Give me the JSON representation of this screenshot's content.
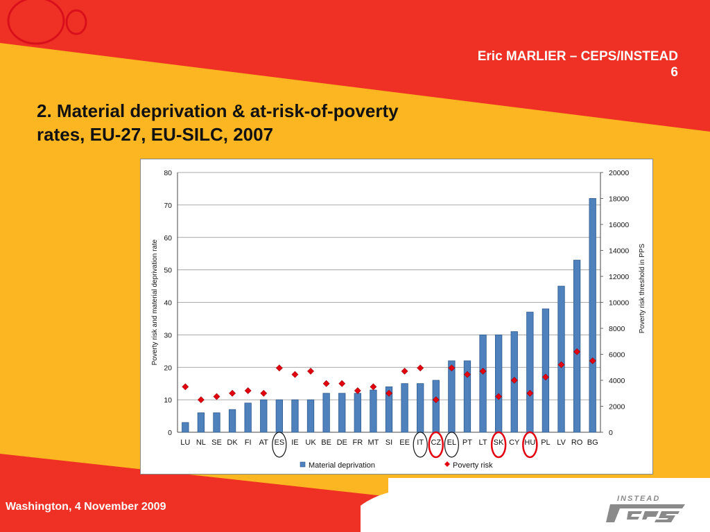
{
  "slide": {
    "author": "Eric MARLIER – CEPS/INSTEAD",
    "page_number": "6",
    "title_line1": "2. Material deprivation & at-risk-of-poverty",
    "title_line2": "rates, EU-27, EU-SILC, 2007",
    "footer": "Washington, 4 November 2009",
    "logo_text": "INSTEAD",
    "colors": {
      "background": "#fbb622",
      "accent_red": "#ee3124",
      "bar_fill": "#4f81bd",
      "marker": "#e3000f"
    }
  },
  "chart_data": {
    "type": "bar",
    "categories": [
      "LU",
      "NL",
      "SE",
      "DK",
      "FI",
      "AT",
      "ES",
      "IE",
      "UK",
      "BE",
      "DE",
      "FR",
      "MT",
      "SI",
      "EE",
      "IT",
      "CZ",
      "EL",
      "PT",
      "LT",
      "SK",
      "CY",
      "HU",
      "PL",
      "LV",
      "RO",
      "BG"
    ],
    "series": [
      {
        "name": "Material deprivation",
        "type": "bar",
        "axis": "left",
        "values": [
          3,
          6,
          6,
          7,
          9,
          10,
          10,
          10,
          10,
          12,
          12,
          12,
          13,
          14,
          15,
          15,
          16,
          22,
          22,
          30,
          30,
          31,
          37,
          38,
          45,
          53,
          72
        ]
      },
      {
        "name": "Poverty risk",
        "type": "marker",
        "axis": "right",
        "values": [
          3500,
          2500,
          2750,
          3000,
          3200,
          3000,
          4950,
          4450,
          4700,
          3750,
          3750,
          3200,
          3500,
          3000,
          4700,
          4950,
          2500,
          4950,
          4450,
          4700,
          2750,
          4000,
          3000,
          4250,
          5200,
          6200,
          5500
        ]
      }
    ],
    "ylabel": "Poverty risk and material deprivation rate",
    "y2label": "Poverty risk threshold in PPS",
    "ylim": [
      0,
      80
    ],
    "y2lim": [
      0,
      20000
    ],
    "yticks": [
      0,
      10,
      20,
      30,
      40,
      50,
      60,
      70,
      80
    ],
    "y2ticks": [
      0,
      2000,
      4000,
      6000,
      8000,
      10000,
      12000,
      14000,
      16000,
      18000,
      20000
    ],
    "grid": true,
    "legend_position": "bottom",
    "highlight_circles": [
      {
        "category": "ES",
        "color": "black"
      },
      {
        "category": "IT",
        "color": "black"
      },
      {
        "category": "CZ",
        "color": "red"
      },
      {
        "category": "EL",
        "color": "black"
      },
      {
        "category": "SK",
        "color": "red"
      },
      {
        "category": "HU",
        "color": "red"
      }
    ]
  }
}
